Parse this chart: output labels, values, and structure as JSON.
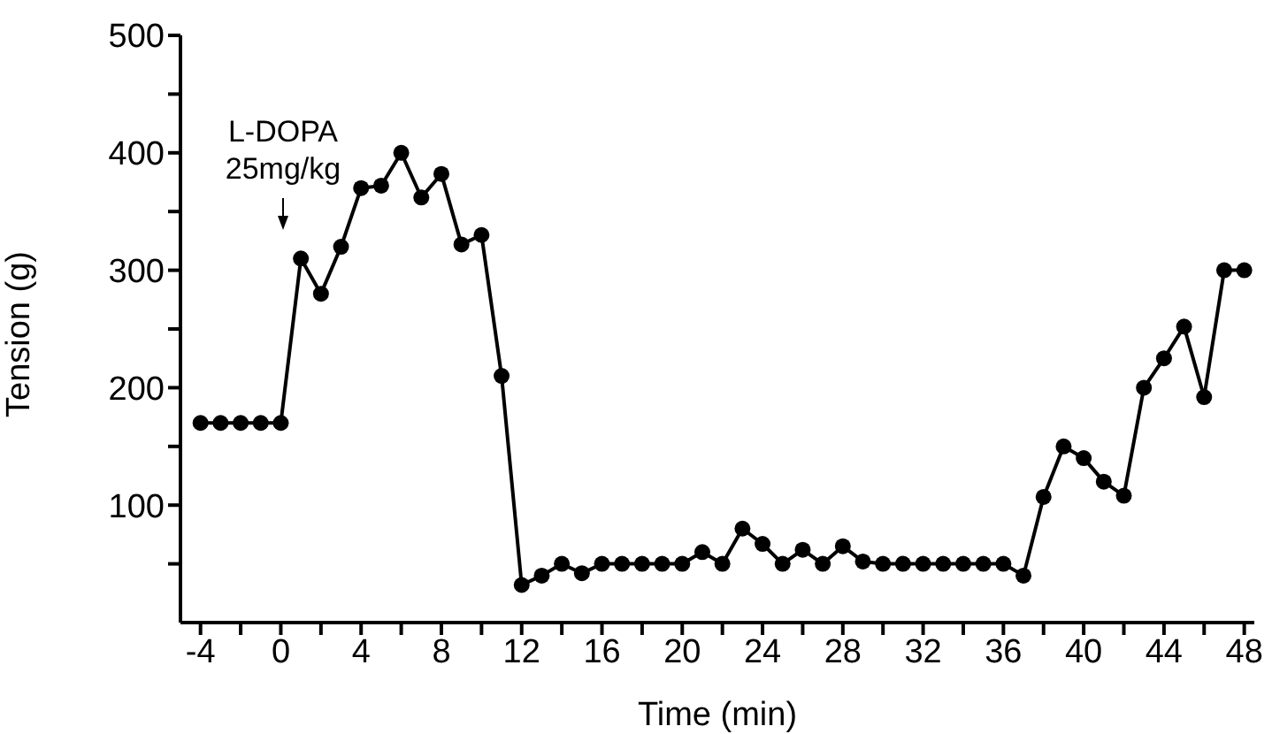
{
  "chart_data": {
    "type": "line",
    "xlabel": "Time (min)",
    "ylabel": "Tension (g)",
    "x": [
      -4,
      -3,
      -2,
      -1,
      0,
      1,
      2,
      3,
      4,
      5,
      6,
      7,
      8,
      9,
      10,
      11,
      12,
      13,
      14,
      15,
      16,
      17,
      18,
      19,
      20,
      21,
      22,
      23,
      24,
      25,
      26,
      27,
      28,
      29,
      30,
      31,
      32,
      33,
      34,
      35,
      36,
      37,
      38,
      39,
      40,
      41,
      42,
      43,
      44,
      45,
      46,
      47,
      48
    ],
    "series": [
      {
        "color": "#000000",
        "values": [
          170,
          170,
          170,
          170,
          170,
          310,
          280,
          320,
          370,
          372,
          400,
          362,
          382,
          322,
          330,
          210,
          32,
          40,
          50,
          42,
          50,
          50,
          50,
          50,
          50,
          60,
          50,
          80,
          67,
          50,
          62,
          50,
          65,
          52,
          50,
          50,
          50,
          50,
          50,
          50,
          50,
          40,
          107,
          150,
          140,
          120,
          108,
          200,
          225,
          252,
          192,
          300,
          300
        ]
      }
    ],
    "xlim": [
      -5,
      48.5
    ],
    "ylim": [
      0,
      500
    ],
    "xticks": [
      -4,
      {
        "value": -2,
        "label": null
      },
      0,
      {
        "value": 2,
        "label": null
      },
      4,
      {
        "value": 6,
        "label": null
      },
      8,
      {
        "value": 10,
        "label": null
      },
      12,
      {
        "value": 14,
        "label": null
      },
      16,
      {
        "value": 18,
        "label": null
      },
      20,
      {
        "value": 22,
        "label": null
      },
      24,
      {
        "value": 26,
        "label": null
      },
      28,
      {
        "value": 30,
        "label": null
      },
      32,
      {
        "value": 34,
        "label": null
      },
      36,
      {
        "value": 38,
        "label": null
      },
      40,
      {
        "value": 42,
        "label": null
      },
      44,
      {
        "value": 46,
        "label": null
      },
      48
    ],
    "yticks": [
      {
        "value": 50,
        "label": null
      },
      100,
      {
        "value": 150,
        "label": null
      },
      200,
      {
        "value": 250,
        "label": null
      },
      300,
      {
        "value": 350,
        "label": null
      },
      400,
      {
        "value": 450,
        "label": null
      },
      500
    ],
    "annotations": [
      "L-DOPA 25mg/kg"
    ],
    "grid": false,
    "legend": false,
    "marker": "circle",
    "line_style": "solid"
  }
}
